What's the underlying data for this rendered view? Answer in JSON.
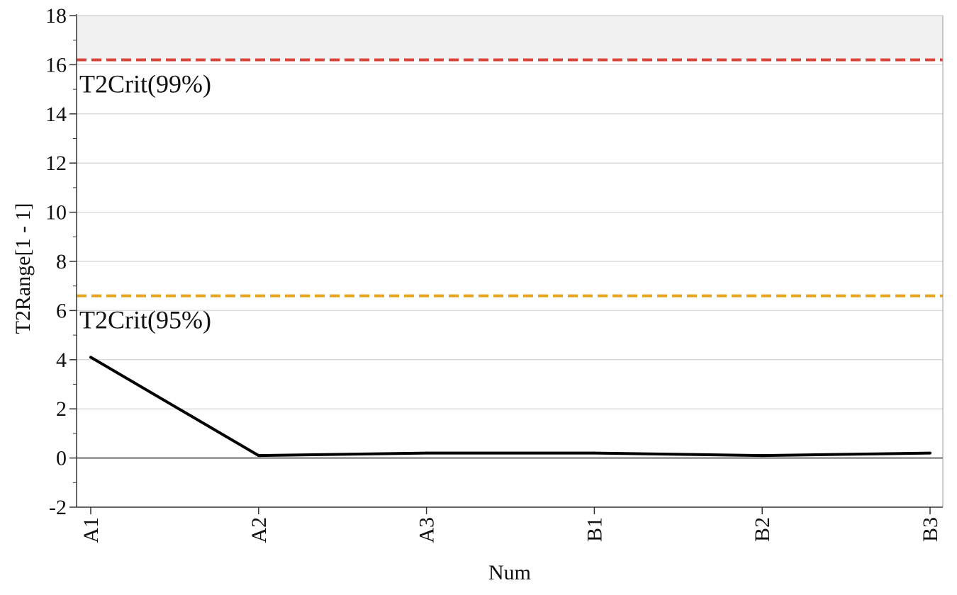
{
  "chart_data": {
    "type": "line",
    "categories": [
      "A1",
      "A2",
      "A3",
      "B1",
      "B2",
      "B3"
    ],
    "series": [
      {
        "values": [
          4.1,
          0.1,
          0.2,
          0.2,
          0.1,
          0.2
        ],
        "color": "#000000"
      }
    ],
    "xlabel": "Num",
    "ylabel": "T2Range[1 - 1]",
    "ylim": [
      -2,
      18
    ],
    "yticks": [
      -2,
      0,
      2,
      4,
      6,
      8,
      10,
      12,
      14,
      16,
      18
    ],
    "grid": true,
    "reference_lines": [
      {
        "label": "T2Crit(99%)",
        "value": 16.2,
        "color": "#d9453b",
        "style": "dashed"
      },
      {
        "label": "T2Crit(95%)",
        "value": 6.6,
        "color": "#e8a51c",
        "style": "dashed"
      }
    ],
    "shaded_region": {
      "from": 16.2,
      "to": 18,
      "color": "#f1f1f1"
    }
  }
}
